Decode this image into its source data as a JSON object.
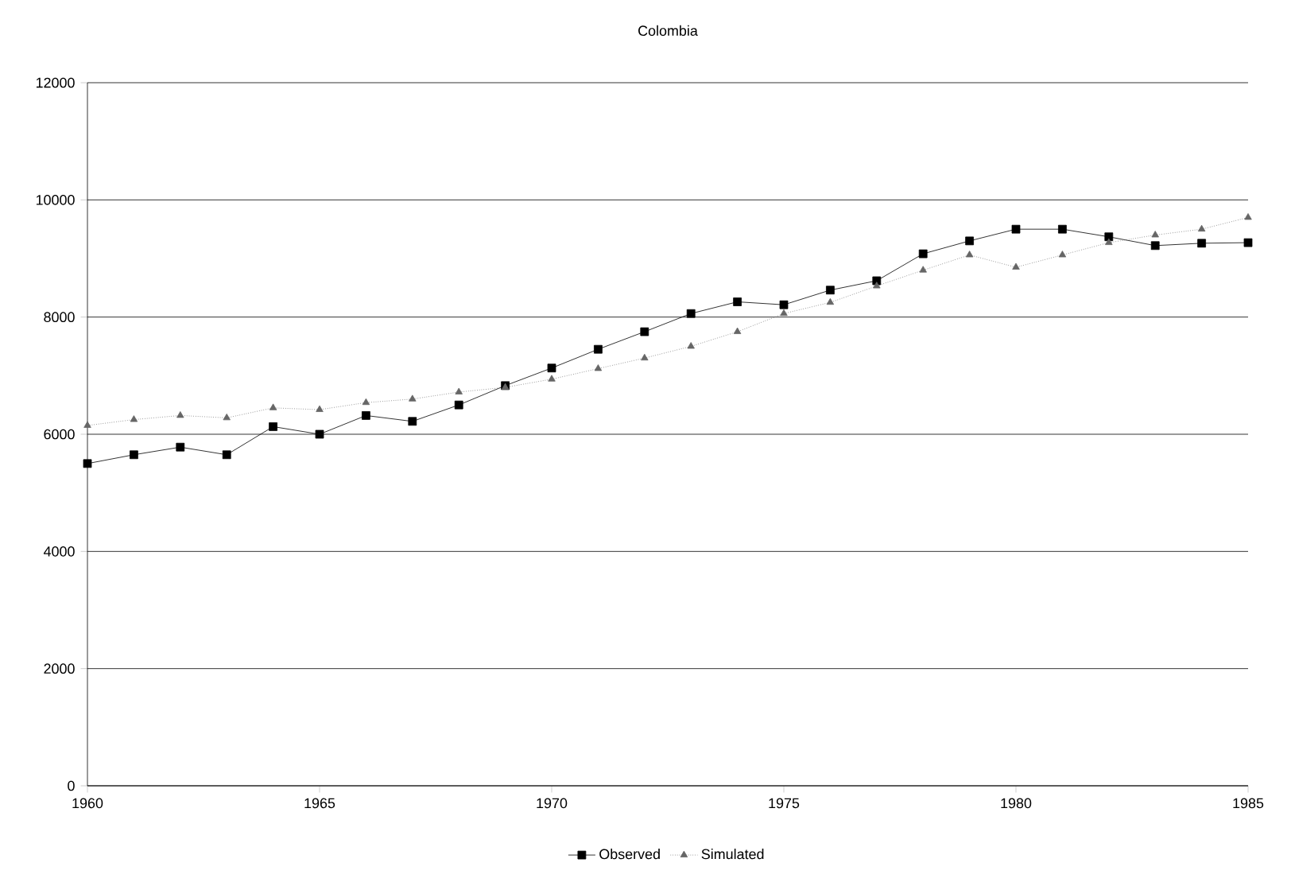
{
  "chart_data": {
    "type": "line",
    "title": "Colombia",
    "x": [
      1960,
      1961,
      1962,
      1963,
      1964,
      1965,
      1966,
      1967,
      1968,
      1969,
      1970,
      1971,
      1972,
      1973,
      1974,
      1975,
      1976,
      1977,
      1978,
      1979,
      1980,
      1981,
      1982,
      1983,
      1984,
      1985
    ],
    "series": [
      {
        "name": "Observed",
        "color": "#000000",
        "marker": "square",
        "line_style": "solid",
        "values": [
          5500,
          5650,
          5780,
          5650,
          6130,
          6000,
          6320,
          6220,
          6500,
          6830,
          7130,
          7450,
          7750,
          8060,
          8260,
          8210,
          8460,
          8620,
          9080,
          9300,
          9500,
          9500,
          9370,
          9220,
          9260,
          9270
        ]
      },
      {
        "name": "Simulated",
        "color": "#666666",
        "marker": "triangle",
        "line_style": "dotted",
        "values": [
          6150,
          6250,
          6320,
          6280,
          6450,
          6420,
          6540,
          6600,
          6720,
          6800,
          6940,
          7120,
          7300,
          7500,
          7750,
          8060,
          8250,
          8530,
          8800,
          9060,
          8850,
          9060,
          9270,
          9400,
          9500,
          9700
        ]
      }
    ],
    "xlim": [
      1960,
      1985
    ],
    "xticks": [
      1960,
      1965,
      1970,
      1975,
      1980,
      1985
    ],
    "ylim": [
      0,
      12000
    ],
    "yticks": [
      0,
      2000,
      4000,
      6000,
      8000,
      10000,
      12000
    ],
    "grid": "y",
    "legend": "bottom"
  }
}
